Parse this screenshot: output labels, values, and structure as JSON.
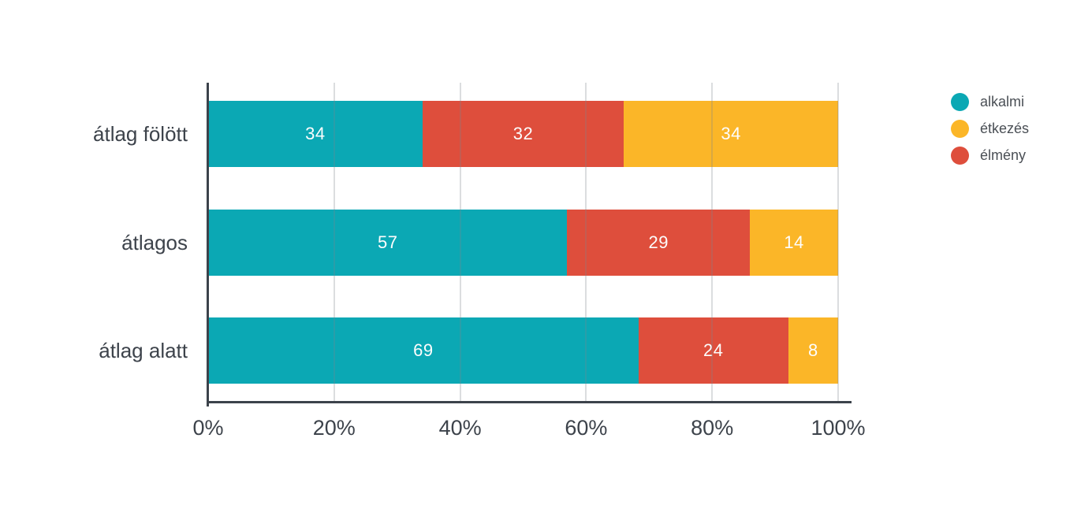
{
  "chart_data": {
    "type": "bar",
    "orientation": "horizontal",
    "stacked": true,
    "normalized_percent": true,
    "title": "",
    "categories": [
      "átlag fölött",
      "átlagos",
      "átlag alatt"
    ],
    "series": [
      {
        "name": "alkalmi",
        "color": "#0ba8b4",
        "values": [
          34,
          57,
          69
        ]
      },
      {
        "name": "élmény",
        "color": "#de4e3c",
        "values": [
          32,
          29,
          24
        ]
      },
      {
        "name": "étkezés",
        "color": "#fbb628",
        "values": [
          34,
          14,
          8
        ]
      }
    ],
    "legend": {
      "position": "top-right",
      "items": [
        "alkalmi",
        "étkezés",
        "élmény"
      ]
    },
    "x_axis": {
      "min": 0,
      "max": 100,
      "unit": "%",
      "tick_values": [
        0,
        20,
        40,
        60,
        80,
        100
      ],
      "tick_labels": [
        "0%",
        "20%",
        "40%",
        "60%",
        "80%",
        "100%"
      ]
    },
    "grid": true,
    "value_labels_shown": true
  },
  "layout_colors": {
    "axis": "#3c434b",
    "grid": "rgba(125,134,140,0.28)",
    "category_text": "#3d434b",
    "tick_text": "#3d434b",
    "legend_text": "#4a4f55",
    "value_text": "#fdfdfd",
    "background": "#ffffff"
  }
}
